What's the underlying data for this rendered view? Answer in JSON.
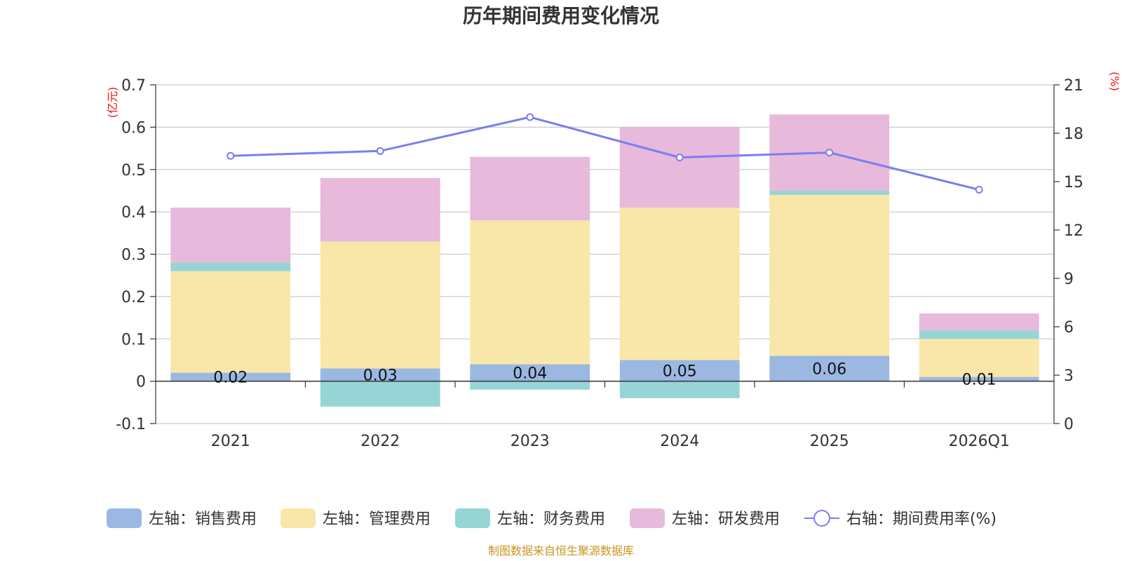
{
  "chart_data": {
    "type": "bar",
    "stacked": true,
    "title": "历年期间费用变化情况",
    "categories": [
      "2021",
      "2022",
      "2023",
      "2024",
      "2025",
      "2026Q1"
    ],
    "left_axis": {
      "unit": "(亿元)",
      "ylim": [
        -0.1,
        0.7
      ],
      "ticks": [
        "-0.1",
        "0",
        "0.1",
        "0.2",
        "0.3",
        "0.4",
        "0.5",
        "0.6",
        "0.7"
      ]
    },
    "right_axis": {
      "unit": "(%)",
      "ylim": [
        0,
        21
      ],
      "ticks": [
        "0",
        "3",
        "6",
        "9",
        "12",
        "15",
        "18",
        "21"
      ]
    },
    "series": [
      {
        "name": "左轴：销售费用",
        "color": "#9bb8e3",
        "values": [
          0.02,
          0.03,
          0.04,
          0.05,
          0.06,
          0.01
        ],
        "labels": [
          "0.02",
          "0.03",
          "0.04",
          "0.05",
          "0.06",
          "0.01"
        ]
      },
      {
        "name": "左轴：管理费用",
        "color": "#f8e7a8",
        "values": [
          0.24,
          0.3,
          0.34,
          0.36,
          0.38,
          0.09
        ]
      },
      {
        "name": "左轴：财务费用",
        "color": "#96d5d5",
        "values": [
          0.02,
          -0.06,
          -0.02,
          -0.04,
          0.01,
          0.02
        ]
      },
      {
        "name": "左轴：研发费用",
        "color": "#e7b9da",
        "values": [
          0.13,
          0.15,
          0.15,
          0.19,
          0.18,
          0.04
        ]
      }
    ],
    "line": {
      "name": "右轴：期间费用率(%)",
      "color": "#7b7ef0",
      "values": [
        16.6,
        16.9,
        19.0,
        16.5,
        16.8,
        14.5
      ]
    },
    "legend_position": "bottom",
    "grid": true,
    "source": "制图数据来自恒生聚源数据库"
  }
}
